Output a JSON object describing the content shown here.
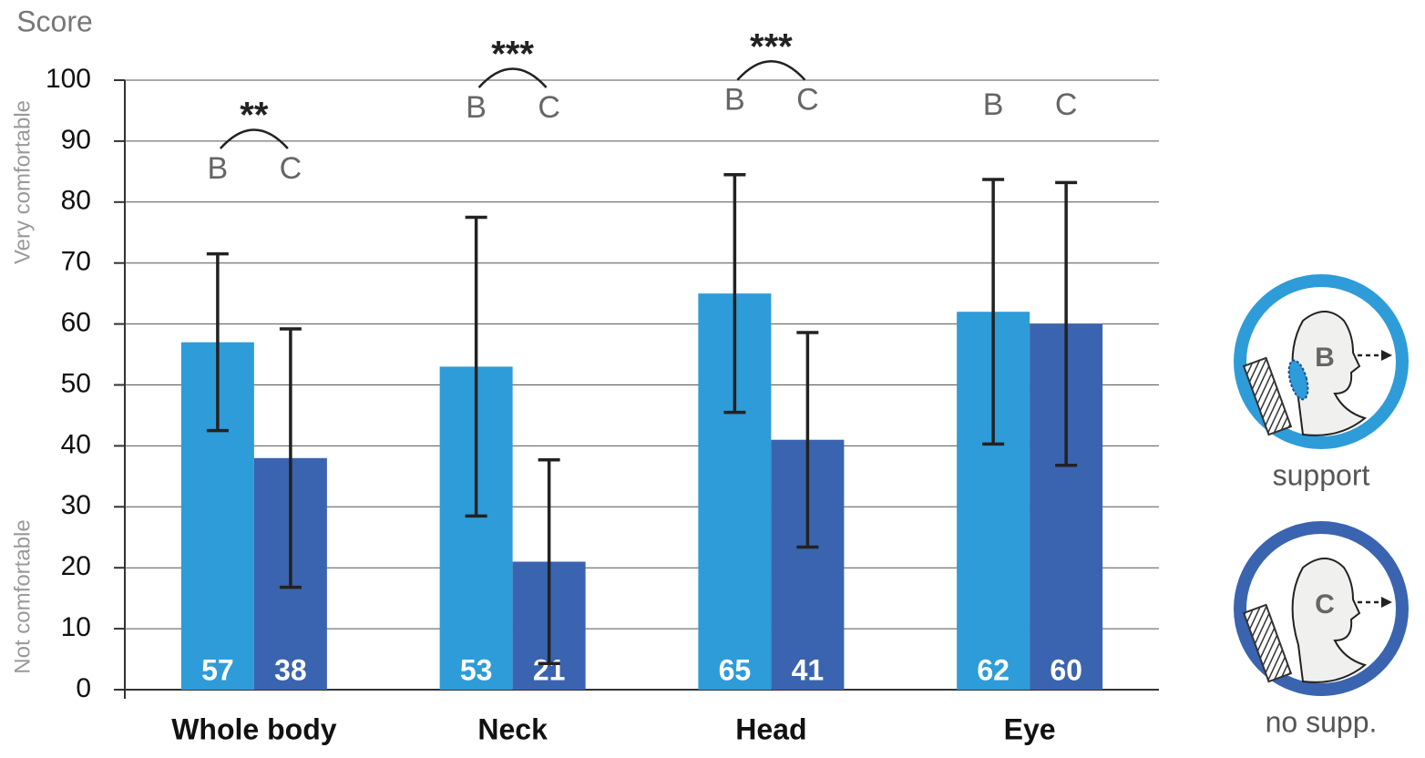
{
  "chart_data": {
    "type": "bar",
    "y_title": "Score",
    "y_high_label": "Very comfortable",
    "y_low_label": "Not comfortable",
    "categories": [
      "Whole body",
      "Neck",
      "Head",
      "Eye"
    ],
    "series": [
      {
        "name": "support",
        "letter": "B",
        "color": "#2e9cd8",
        "values": [
          57,
          53,
          65,
          62
        ],
        "errors": [
          14.5,
          24.5,
          19.5,
          21.7
        ]
      },
      {
        "name": "no supp.",
        "letter": "C",
        "color": "#3a64b0",
        "values": [
          38,
          21,
          41,
          60
        ],
        "errors": [
          21.2,
          16.7,
          17.6,
          23.2
        ]
      }
    ],
    "significance": [
      "**",
      "***",
      "***",
      null
    ],
    "ylim": [
      0,
      100
    ],
    "yticks": [
      0,
      10,
      20,
      30,
      40,
      50,
      60,
      70,
      80,
      90,
      100
    ],
    "grid": true
  }
}
